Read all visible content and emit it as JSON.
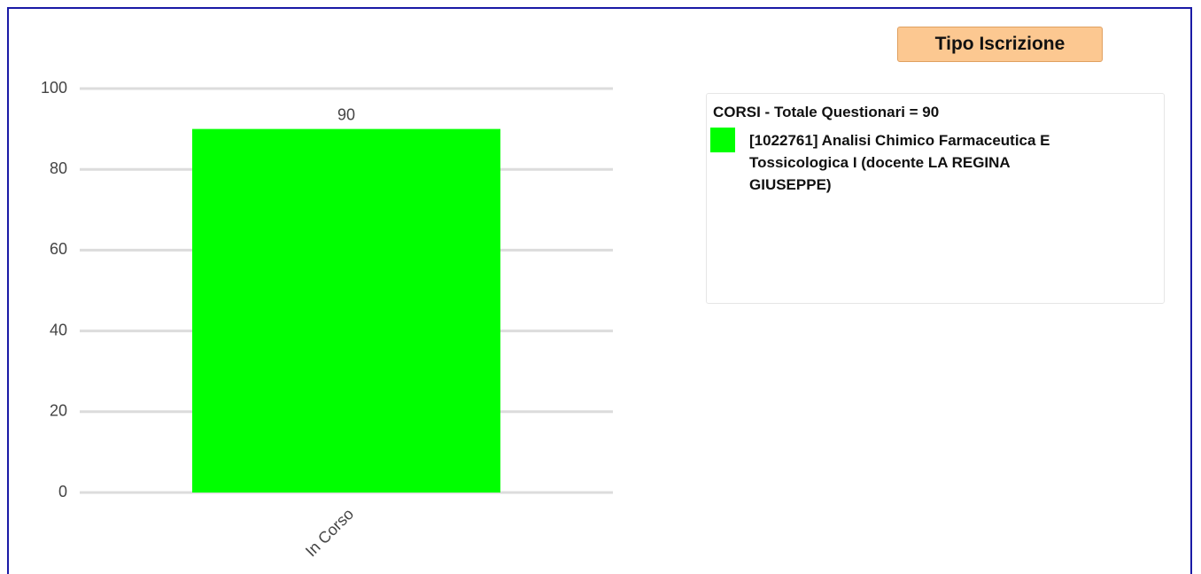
{
  "chart_data": {
    "type": "bar",
    "title": "Tipo Iscrizione",
    "legend_title": "CORSI - Totale Questionari = 90",
    "categories": [
      "In Corso"
    ],
    "series": [
      {
        "name": "[1022761] Analisi Chimico Farmaceutica E Tossicologica I (docente LA REGINA GIUSEPPE)",
        "color": "#00ff00",
        "values": [
          90
        ]
      }
    ],
    "ylim": [
      0,
      100
    ],
    "yticks": [
      0,
      20,
      40,
      60,
      80,
      100
    ],
    "grid": true,
    "legend": "upper right"
  }
}
